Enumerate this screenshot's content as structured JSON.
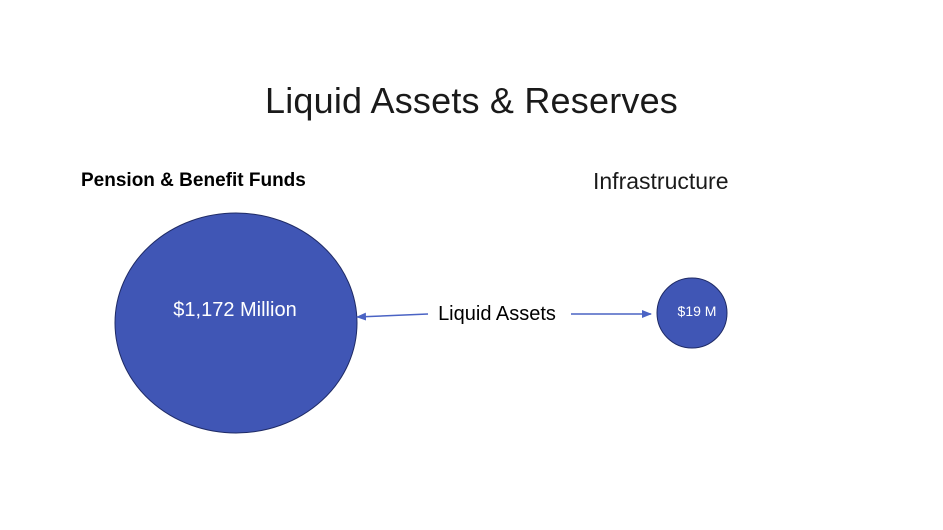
{
  "title": "Liquid Assets & Reserves",
  "left_group": {
    "label": "Pension & Benefit Funds",
    "value_label": "$1,172 Million"
  },
  "right_group": {
    "label": "Infrastructure",
    "value_label": "$19 M"
  },
  "connector_label": "Liquid Assets",
  "colors": {
    "circle_fill": "#4056B5",
    "circle_stroke": "#1f2b66",
    "arrow": "#4a63c4"
  }
}
